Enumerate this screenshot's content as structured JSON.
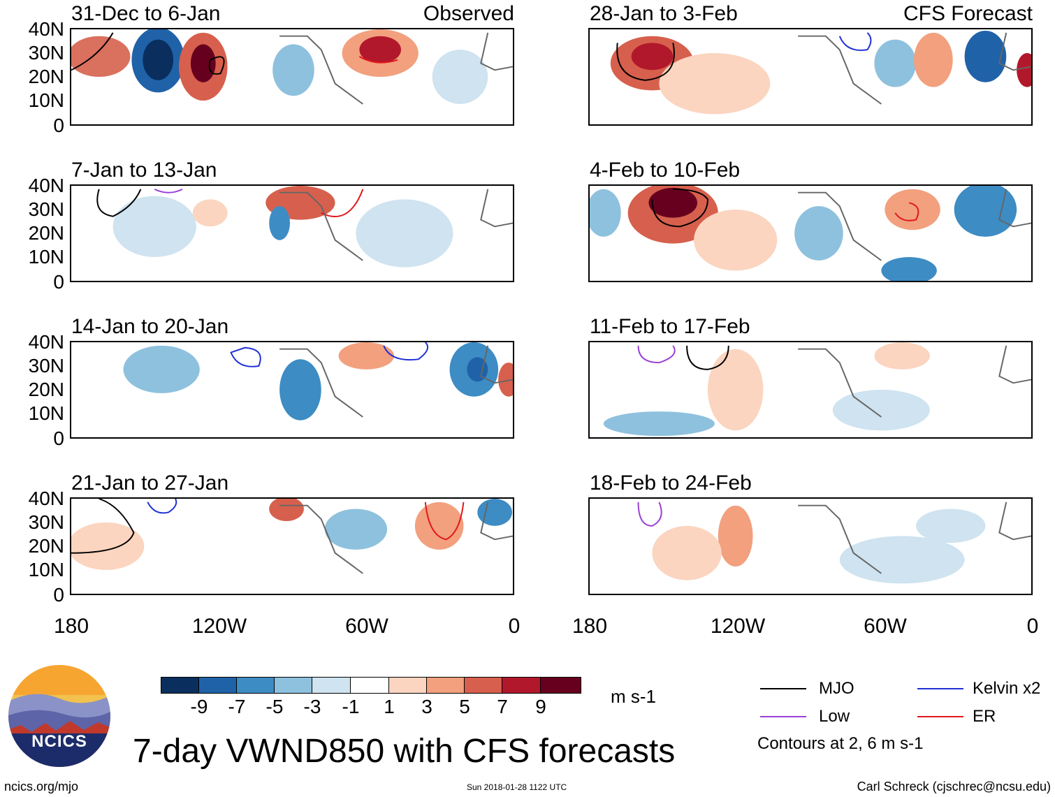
{
  "figure_title": "7-day VWND850 with CFS forecasts",
  "columns": {
    "left_label": "Observed",
    "right_label": "CFS Forecast"
  },
  "axes": {
    "y_ticks": [
      "40N",
      "30N",
      "20N",
      "10N",
      "0"
    ],
    "x_ticks": [
      "180",
      "120W",
      "60W",
      "0"
    ]
  },
  "panels": {
    "left": [
      {
        "title": "31-Dec to 6-Jan"
      },
      {
        "title": "7-Jan to 13-Jan"
      },
      {
        "title": "14-Jan to 20-Jan"
      },
      {
        "title": "21-Jan to 27-Jan"
      }
    ],
    "right": [
      {
        "title": "28-Jan to 3-Feb"
      },
      {
        "title": "4-Feb to 10-Feb"
      },
      {
        "title": "11-Feb to 17-Feb"
      },
      {
        "title": "18-Feb to 24-Feb"
      }
    ]
  },
  "colorbar": {
    "unit": "m s-1",
    "labels": [
      "-9",
      "-7",
      "-5",
      "-3",
      "-1",
      "1",
      "3",
      "5",
      "7",
      "9"
    ],
    "colors": [
      "#0a2f5e",
      "#1f62a8",
      "#3d8cc4",
      "#8ec1de",
      "#cfe3f0",
      "#ffffff",
      "#fbd5c0",
      "#f2a07e",
      "#d6604d",
      "#b2182b",
      "#67001f"
    ]
  },
  "legend": {
    "items": [
      {
        "label": "MJO",
        "color": "#000000"
      },
      {
        "label": "Kelvin x2",
        "color": "#1f2fd6"
      },
      {
        "label": "Low",
        "color": "#9a3fd6"
      },
      {
        "label": "ER",
        "color": "#e3161b"
      }
    ],
    "note": "Contours at 2, 6 m s-1"
  },
  "logo": {
    "text": "NCICS"
  },
  "footer": {
    "url": "ncics.org/mjo",
    "timestamp": "Sun 2018-01-28 1122 UTC",
    "author": "Carl Schreck (cjschrec@ncsu.edu)"
  }
}
